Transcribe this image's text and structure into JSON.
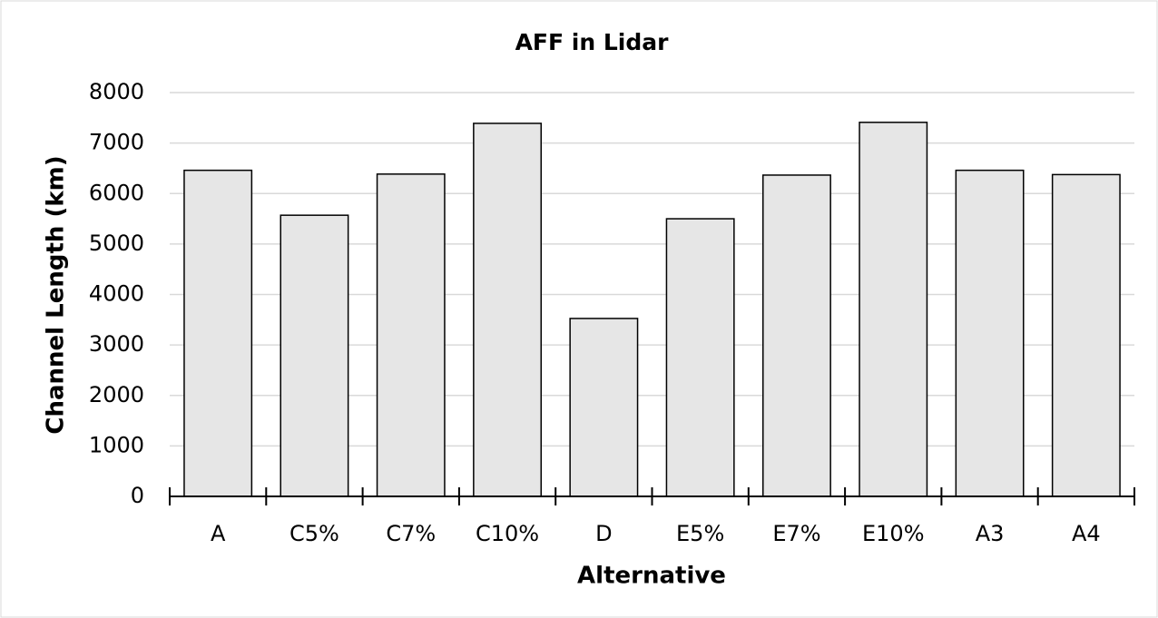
{
  "chart_data": {
    "type": "bar",
    "title": "AFF in Lidar",
    "x_label": "Alternative",
    "y_label": "Channel Length (km)",
    "categories": [
      "A",
      "C5%",
      "C7%",
      "C10%",
      "D",
      "E5%",
      "E7%",
      "E10%",
      "A3",
      "A4"
    ],
    "values": [
      6460,
      5570,
      6385,
      7390,
      3525,
      5500,
      6365,
      7410,
      6460,
      6375
    ],
    "color": "#e6e6e6",
    "ylim": [
      0,
      8000
    ],
    "yticks": [
      0,
      1000,
      2000,
      3000,
      4000,
      5000,
      6000,
      7000,
      8000
    ],
    "grid": true
  }
}
